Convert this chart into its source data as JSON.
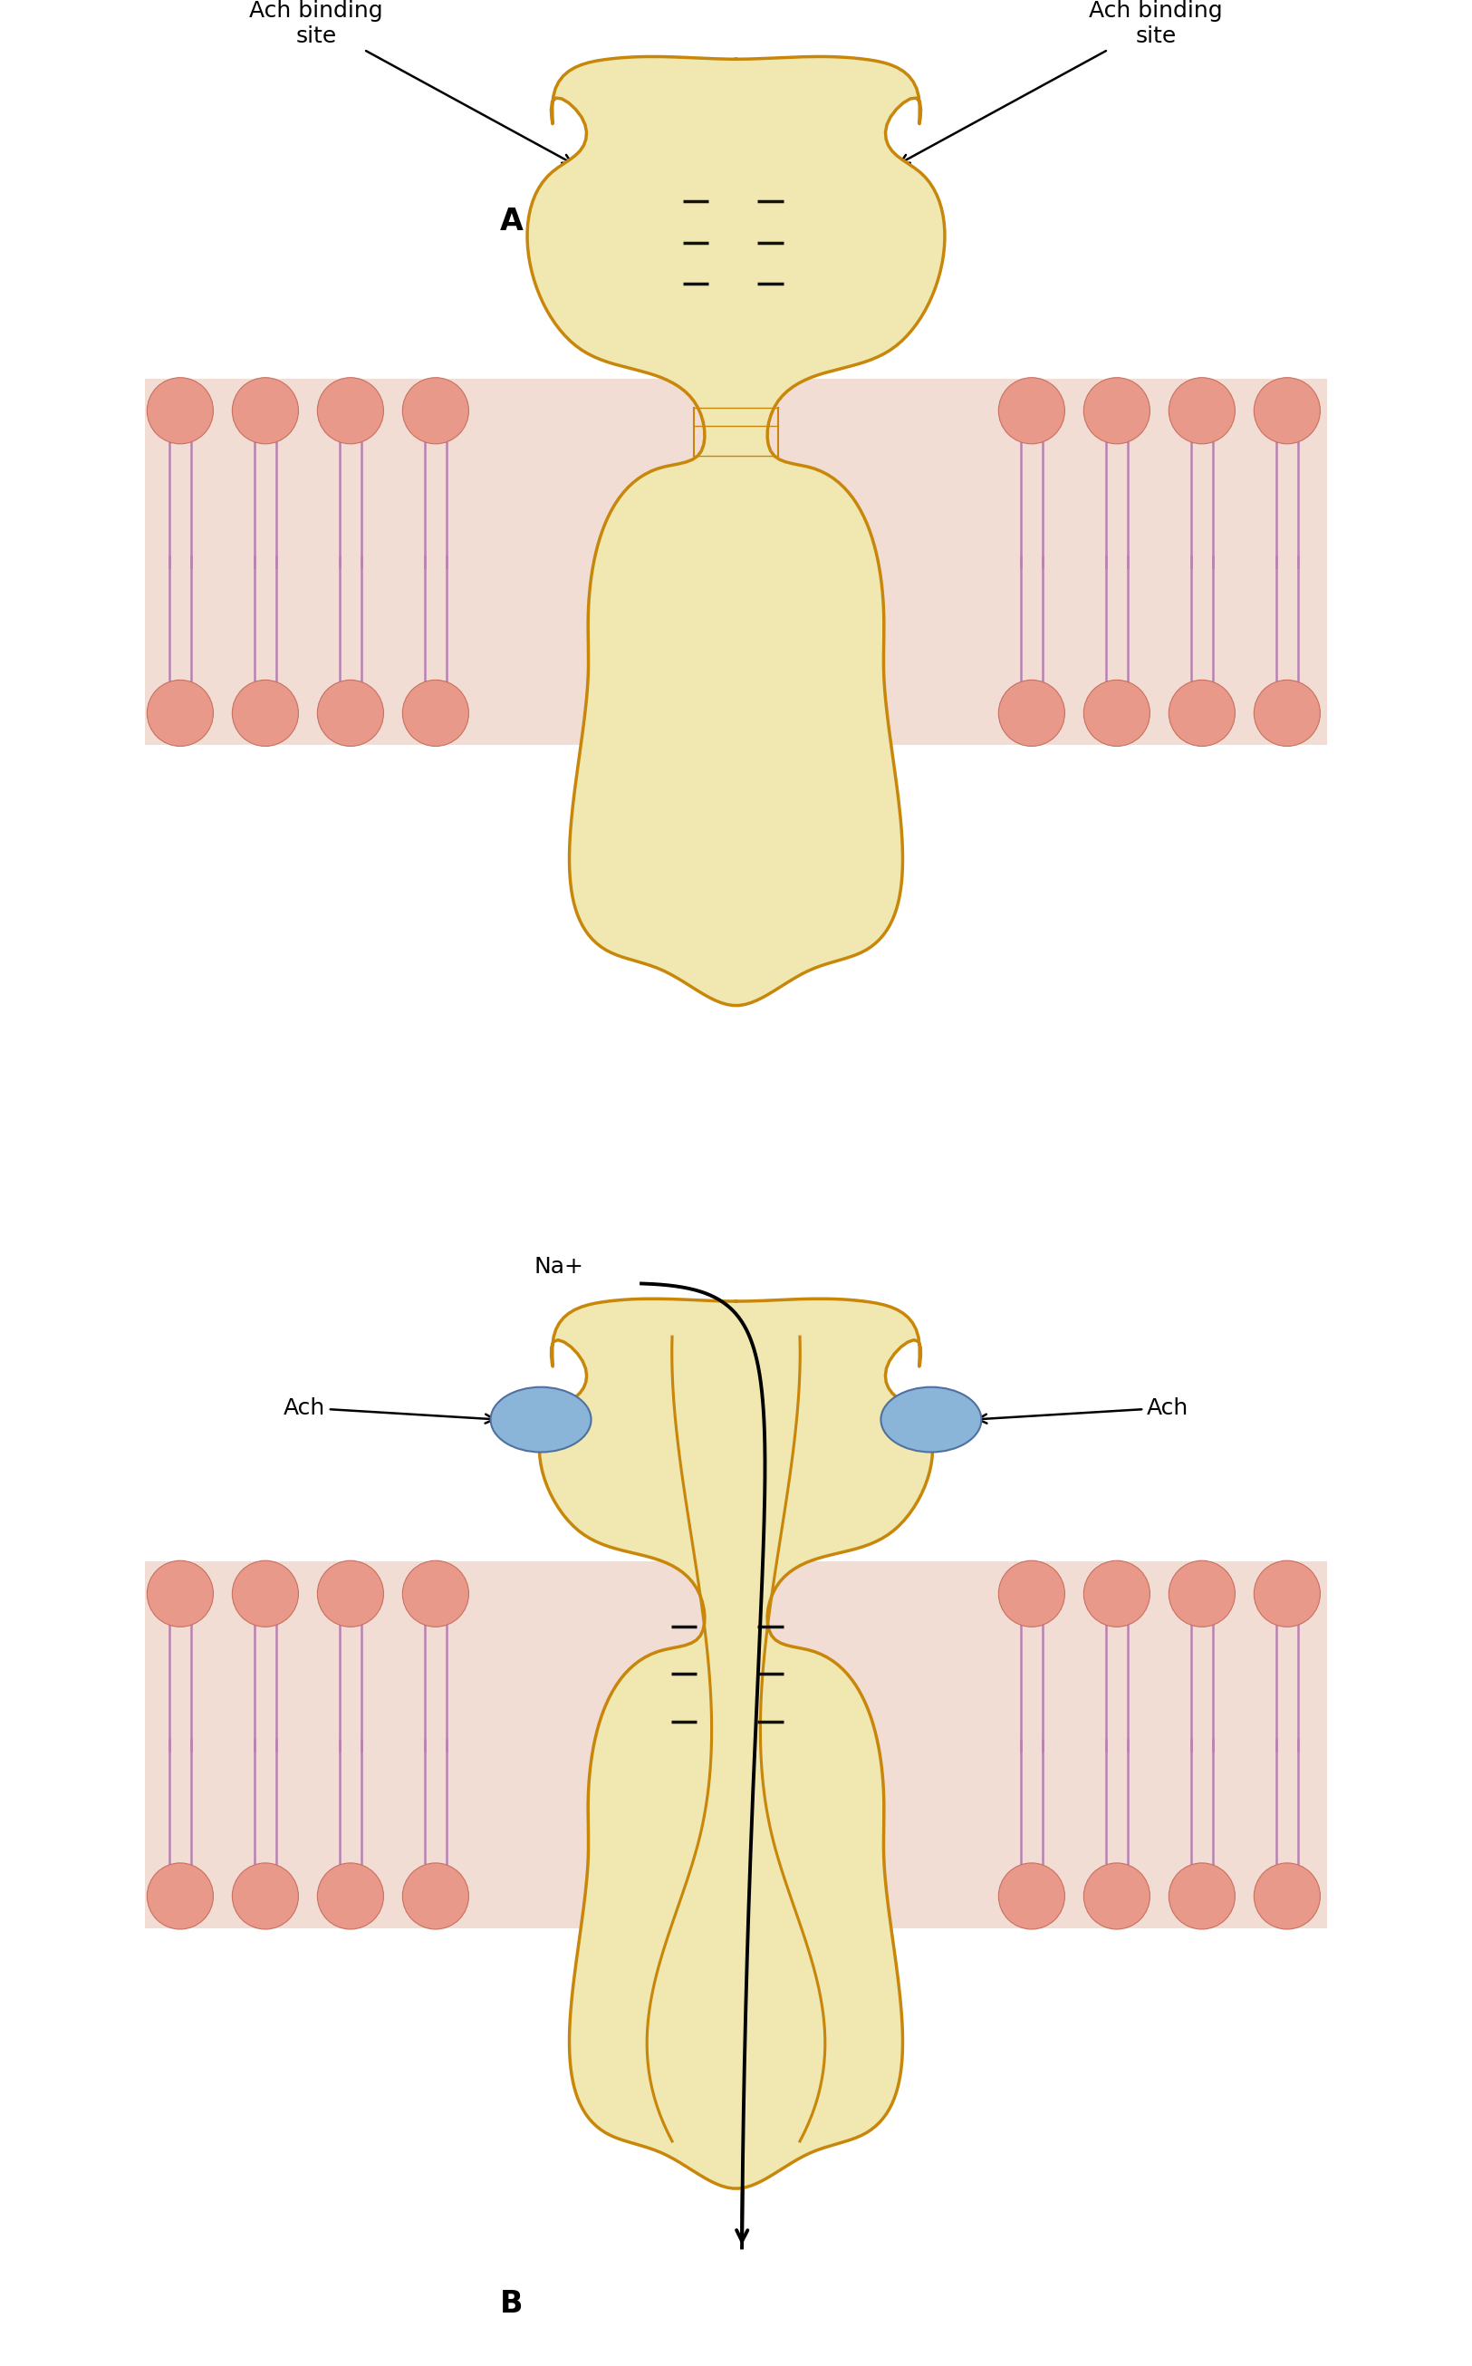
{
  "bg_color": "#ffffff",
  "membrane_bg": "#f2ddd5",
  "lipid_head_color": "#e8998a",
  "lipid_head_edge": "#c97060",
  "lipid_tail_color": "#b882b0",
  "channel_fill": "#f0e8b0",
  "channel_fill_light": "#f8f4d0",
  "channel_edge": "#c8860a",
  "ach_ball_color": "#8ab4d8",
  "ach_ball_edge": "#5070a0",
  "label_fontsize": 18,
  "annotation_fontsize": 18,
  "panel_label_fontsize": 24,
  "title_A": "A",
  "title_B": "B",
  "ach_label": "Ach binding\nsite",
  "ach_label_B_left": "Ach",
  "ach_label_B_right": "Ach",
  "na_label": "Na+"
}
